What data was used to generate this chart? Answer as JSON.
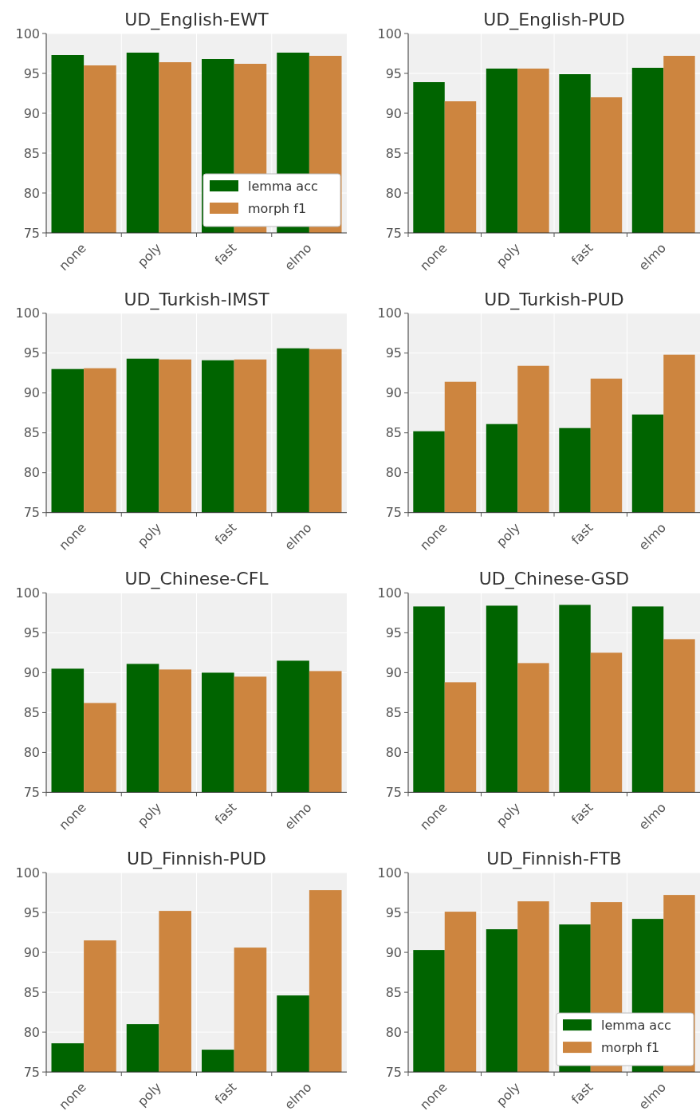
{
  "chart_data": [
    {
      "type": "bar",
      "title": "UD_English-EWT",
      "categories": [
        "none",
        "poly",
        "fast",
        "elmo"
      ],
      "series": [
        {
          "name": "lemma acc",
          "color": "#006400",
          "values": [
            97.3,
            97.6,
            96.8,
            97.6
          ]
        },
        {
          "name": "morph f1",
          "color": "#cd853f",
          "values": [
            96.0,
            96.4,
            96.2,
            97.2
          ]
        }
      ],
      "ylim": [
        75,
        100
      ],
      "yticks": [
        75,
        80,
        85,
        90,
        95,
        100
      ],
      "grid": true,
      "legend": "bottom right"
    },
    {
      "type": "bar",
      "title": "UD_English-PUD",
      "categories": [
        "none",
        "poly",
        "fast",
        "elmo"
      ],
      "series": [
        {
          "color": "#006400",
          "values": [
            93.9,
            95.6,
            94.9,
            95.7
          ]
        },
        {
          "color": "#cd853f",
          "values": [
            91.5,
            95.6,
            92.0,
            97.2
          ]
        }
      ],
      "ylim": [
        75,
        100
      ],
      "yticks": [
        75,
        80,
        85,
        90,
        95,
        100
      ],
      "grid": true
    },
    {
      "type": "bar",
      "title": "UD_Turkish-IMST",
      "categories": [
        "none",
        "poly",
        "fast",
        "elmo"
      ],
      "series": [
        {
          "color": "#006400",
          "values": [
            93.0,
            94.3,
            94.1,
            95.6
          ]
        },
        {
          "color": "#cd853f",
          "values": [
            93.1,
            94.2,
            94.2,
            95.5
          ]
        }
      ],
      "ylim": [
        75,
        100
      ],
      "yticks": [
        75,
        80,
        85,
        90,
        95,
        100
      ],
      "grid": true
    },
    {
      "type": "bar",
      "title": "UD_Turkish-PUD",
      "categories": [
        "none",
        "poly",
        "fast",
        "elmo"
      ],
      "series": [
        {
          "color": "#006400",
          "values": [
            85.2,
            86.1,
            85.6,
            87.3
          ]
        },
        {
          "color": "#cd853f",
          "values": [
            91.4,
            93.4,
            91.8,
            94.8
          ]
        }
      ],
      "ylim": [
        75,
        100
      ],
      "yticks": [
        75,
        80,
        85,
        90,
        95,
        100
      ],
      "grid": true
    },
    {
      "type": "bar",
      "title": "UD_Chinese-CFL",
      "categories": [
        "none",
        "poly",
        "fast",
        "elmo"
      ],
      "series": [
        {
          "color": "#006400",
          "values": [
            90.5,
            91.1,
            90.0,
            91.5
          ]
        },
        {
          "color": "#cd853f",
          "values": [
            86.2,
            90.4,
            89.5,
            90.2
          ]
        }
      ],
      "ylim": [
        75,
        100
      ],
      "yticks": [
        75,
        80,
        85,
        90,
        95,
        100
      ],
      "grid": true
    },
    {
      "type": "bar",
      "title": "UD_Chinese-GSD",
      "categories": [
        "none",
        "poly",
        "fast",
        "elmo"
      ],
      "series": [
        {
          "color": "#006400",
          "values": [
            98.3,
            98.4,
            98.5,
            98.3
          ]
        },
        {
          "color": "#cd853f",
          "values": [
            88.8,
            91.2,
            92.5,
            94.2
          ]
        }
      ],
      "ylim": [
        75,
        100
      ],
      "yticks": [
        75,
        80,
        85,
        90,
        95,
        100
      ],
      "grid": true
    },
    {
      "type": "bar",
      "title": "UD_Finnish-PUD",
      "categories": [
        "none",
        "poly",
        "fast",
        "elmo"
      ],
      "series": [
        {
          "color": "#006400",
          "values": [
            78.6,
            81.0,
            77.8,
            84.6
          ]
        },
        {
          "color": "#cd853f",
          "values": [
            91.5,
            95.2,
            90.6,
            97.8
          ]
        }
      ],
      "ylim": [
        75,
        100
      ],
      "yticks": [
        75,
        80,
        85,
        90,
        95,
        100
      ],
      "grid": true
    },
    {
      "type": "bar",
      "title": "UD_Finnish-FTB",
      "categories": [
        "none",
        "poly",
        "fast",
        "elmo"
      ],
      "series": [
        {
          "name": "lemma acc",
          "color": "#006400",
          "values": [
            90.3,
            92.9,
            93.5,
            94.2
          ]
        },
        {
          "name": "morph f1",
          "color": "#cd853f",
          "values": [
            95.1,
            96.4,
            96.3,
            97.2
          ]
        }
      ],
      "ylim": [
        75,
        100
      ],
      "yticks": [
        75,
        80,
        85,
        90,
        95,
        100
      ],
      "grid": true,
      "legend": "bottom right"
    }
  ]
}
